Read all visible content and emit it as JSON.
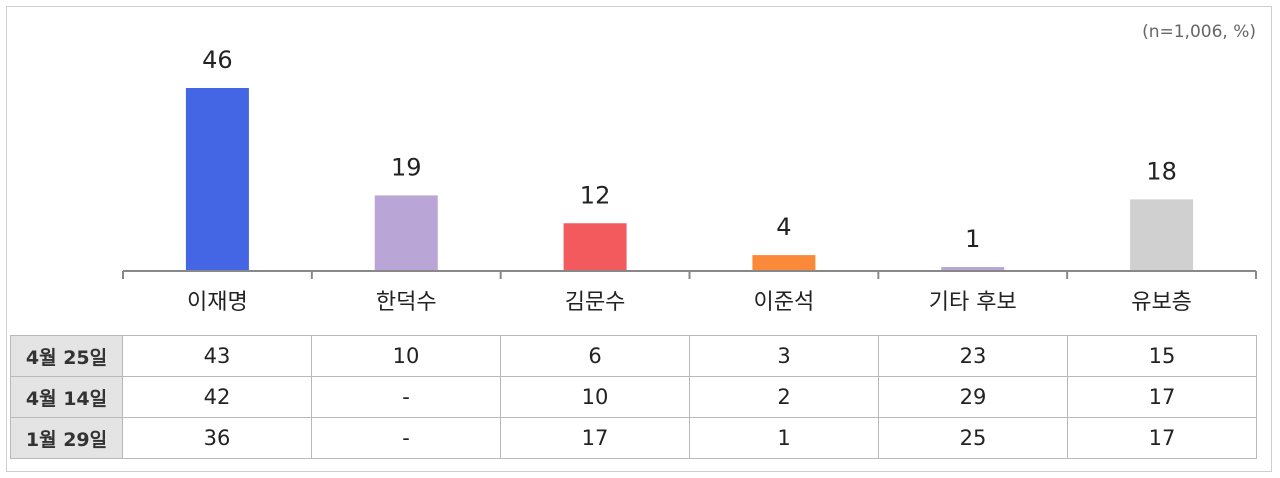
{
  "chart_data": {
    "type": "bar",
    "note": "(n=1,006, %)",
    "categories": [
      "이재명",
      "한덕수",
      "김문수",
      "이준석",
      "기타 후보",
      "유보층"
    ],
    "values": [
      46,
      19,
      12,
      4,
      1,
      18
    ],
    "colors": [
      "#4566E4",
      "#B9A6D6",
      "#F25A5E",
      "#FA8A3A",
      "#B9A6D6",
      "#D0D0D0"
    ],
    "ylim": [
      0,
      50
    ]
  },
  "history_table": {
    "rows": [
      {
        "label": "4월 25일",
        "values": [
          "43",
          "10",
          "6",
          "3",
          "23",
          "15"
        ]
      },
      {
        "label": "4월 14일",
        "values": [
          "42",
          "-",
          "10",
          "2",
          "29",
          "17"
        ]
      },
      {
        "label": "1월 29일",
        "values": [
          "36",
          "-",
          "17",
          "1",
          "25",
          "17"
        ]
      }
    ]
  }
}
